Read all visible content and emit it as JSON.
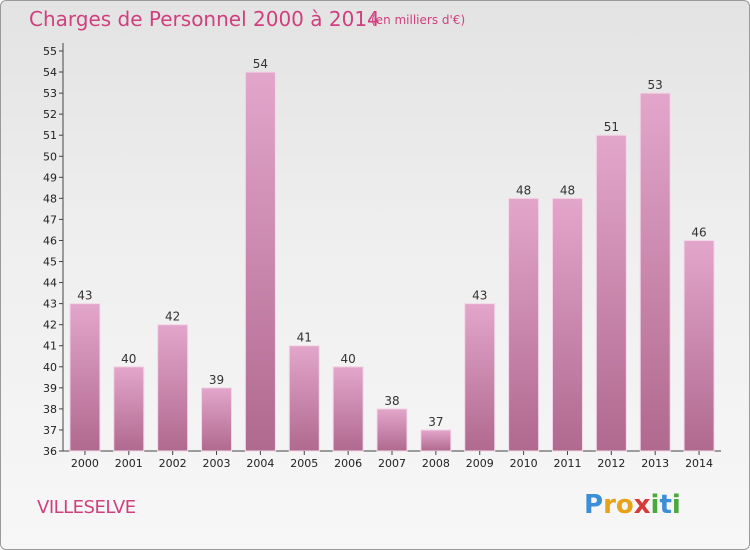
{
  "chart_data": {
    "type": "bar",
    "title": "Charges de Personnel 2000 à 2014",
    "subtitle": "(en milliers d'€)",
    "categories": [
      "2000",
      "2001",
      "2002",
      "2003",
      "2004",
      "2005",
      "2006",
      "2007",
      "2008",
      "2009",
      "2010",
      "2011",
      "2012",
      "2013",
      "2014"
    ],
    "values": [
      43,
      40,
      42,
      39,
      54,
      41,
      40,
      38,
      37,
      43,
      48,
      48,
      51,
      53,
      46
    ],
    "ylim": [
      36,
      55
    ],
    "yticks": [
      36,
      37,
      38,
      39,
      40,
      41,
      42,
      43,
      44,
      45,
      46,
      47,
      48,
      49,
      50,
      51,
      52,
      53,
      54,
      55
    ],
    "xlabel": "",
    "ylabel": "",
    "grid": false,
    "colors": {
      "bar_top": "#e3a6cb",
      "bar_bottom": "#b0698f",
      "text_accent": "#d0407f"
    }
  },
  "footer": {
    "place": "VILLESELVE",
    "logo_letters": [
      {
        "ch": "P",
        "color": "#3c8fd6"
      },
      {
        "ch": "r",
        "color": "#e8a21a"
      },
      {
        "ch": "o",
        "color": "#e8a21a"
      },
      {
        "ch": "x",
        "color": "#d63a3a"
      },
      {
        "ch": "i",
        "color": "#4aa83c"
      },
      {
        "ch": "t",
        "color": "#3c8fd6"
      },
      {
        "ch": "i",
        "color": "#4aa83c"
      }
    ]
  }
}
